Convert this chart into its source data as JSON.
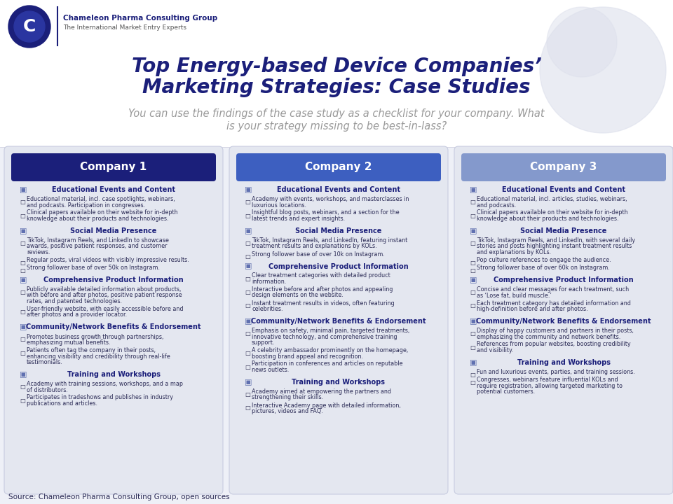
{
  "title_line1": "Top Energy-based Device Companies’",
  "title_line2": "Marketing Strategies: Case Studies",
  "subtitle_line1": "You can use the findings of the case study as a checklist for your company. What",
  "subtitle_line2": "is your strategy missing to be best-in-lass?",
  "source": "Source: Chameleon Pharma Consulting Group, open sources",
  "bg_color": "#eef0f7",
  "header_colors": [
    "#1b1f7a",
    "#3d5fc0",
    "#8499cc"
  ],
  "box_bg": "#e4e7f0",
  "box_border": "#c8cce0",
  "title_color": "#1b1f7a",
  "subtitle_color": "#999999",
  "section_title_color": "#1b1f7a",
  "body_color": "#2a2a55",
  "icon_color": "#6070b0",
  "companies": [
    "Company 1",
    "Company 2",
    "Company 3"
  ],
  "sections": [
    {
      "title": "Educational Events and Content",
      "items_per_company": [
        [
          "Educational material, incl. case spotlights, webinars,\nand podcasts. Participation in congresses.",
          "Clinical papers available on their website for in-depth\nknowledge about their products and technologies."
        ],
        [
          "Academy with events, workshops, and masterclasses in\nluxurious locations.",
          "Insightful blog posts, webinars, and a section for the\nlatest trends and expert insights."
        ],
        [
          "Educational material, incl. articles, studies, webinars,\nand podcasts.",
          "Clinical papers available on their website for in-depth\nknowledge about their products and technologies."
        ]
      ]
    },
    {
      "title": "Social Media Presence",
      "items_per_company": [
        [
          "TikTok, Instagram Reels, and LinkedIn to showcase\nawards, positive patient responses, and customer\nreviews.",
          "Regular posts, viral videos with visibly impressive results.",
          "Strong follower base of over 50k on Instagram."
        ],
        [
          "TikTok, Instagram Reels, and LinkedIn, featuring instant\ntreatment results and explanations by KOLs.",
          "Strong follower base of over 10k on Instagram."
        ],
        [
          "TikTok, Instagram Reels, and LinkedIn, with several daily\nstories and posts highlighting instant treatment results\nand explanations by KOLs.",
          "Pop culture references to engage the audience.",
          "Strong follower base of over 60k on Instagram."
        ]
      ]
    },
    {
      "title": "Comprehensive Product Information",
      "items_per_company": [
        [
          "Publicly available detailed information about products,\nwith before and after photos, positive patient response\nrates, and patented technologies.",
          "User-friendly website, with easily accessible before and\nafter photos and a provider locator."
        ],
        [
          "Clear treatment categories with detailed product\ninformation.",
          "Interactive before and after photos and appealing\ndesign elements on the website.",
          "Instant treatment results in videos, often featuring\ncelebrities."
        ],
        [
          "Concise and clear messages for each treatment, such\nas ‘Lose fat, build muscle.’",
          "Each treatment category has detailed information and\nhigh-definition before and after photos."
        ]
      ]
    },
    {
      "title": "Community/Network Benefits & Endorsement",
      "items_per_company": [
        [
          "Promotes business growth through partnerships,\nemphasizing mutual benefits.",
          "Patients often tag the company in their posts,\nenhancing visibility and credibility through real-life\ntestimonials."
        ],
        [
          "Emphasis on safety, minimal pain, targeted treatments,\ninnovative technology, and comprehensive training\nsupport.",
          "A celebrity ambassador prominently on the homepage,\nboosting brand appeal and recognition.",
          "Participation in conferences and articles on reputable\nnews outlets."
        ],
        [
          "Display of happy customers and partners in their posts,\nemphasizing the community and network benefits.",
          "References from popular websites, boosting credibility\nand visibility."
        ]
      ]
    },
    {
      "title": "Training and Workshops",
      "items_per_company": [
        [
          "Academy with training sessions, workshops, and a map\nof distributors.",
          "Participates in tradeshows and publishes in industry\npublications and articles."
        ],
        [
          "Academy aimed at empowering the partners and\nstrengthening their skills.",
          "Interactive Academy page with detailed information,\npictures, videos and FAQ."
        ],
        [
          "Fun and luxurious events, parties, and training sessions.",
          "Congresses, webinars feature influential KOLs and\nrequire registration, allowing targeted marketing to\npotential customers."
        ]
      ]
    }
  ]
}
